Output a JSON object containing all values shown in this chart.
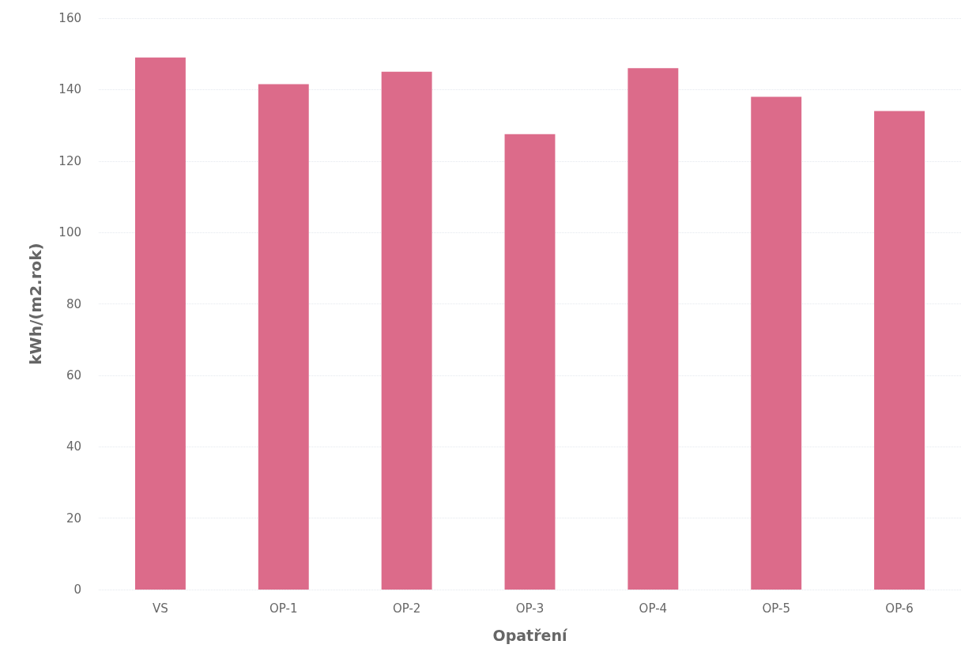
{
  "chart_data": {
    "type": "bar",
    "xlabel": "Opatření",
    "ylabel": "kWh/(m2.rok)",
    "categories": [
      "VS",
      "OP-1",
      "OP-2",
      "OP-3",
      "OP-4",
      "OP-5",
      "OP-6"
    ],
    "values": [
      149,
      141.5,
      145,
      127.5,
      146,
      138,
      134
    ],
    "color": "#dc6b8a",
    "ylim": [
      0,
      160
    ],
    "yticks": [
      0,
      20,
      40,
      60,
      80,
      100,
      120,
      140,
      160
    ],
    "grid": "y"
  }
}
